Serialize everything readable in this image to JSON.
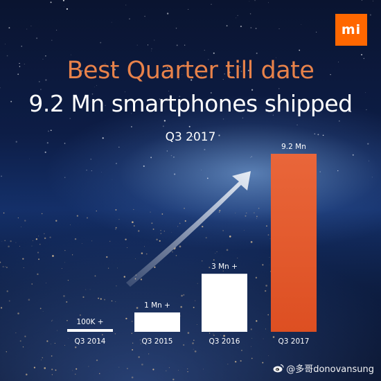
{
  "poster": {
    "logo_text": "mi",
    "title": "Best Quarter till date",
    "subtitle": "9.2 Mn smartphones shipped",
    "period": "Q3 2017",
    "watermark": "@多哥donovansung"
  },
  "colors": {
    "title": "#e8824a",
    "bar_default": "#ffffff",
    "bar_highlight": "#e45a2a",
    "logo_bg": "#ff6700"
  },
  "chart_data": {
    "type": "bar",
    "title": "",
    "xlabel": "",
    "ylabel": "",
    "categories": [
      "Q3 2014",
      "Q3 2015",
      "Q3 2016",
      "Q3 2017"
    ],
    "values": [
      0.1,
      1,
      3,
      9.2
    ],
    "unit": "Mn smartphones",
    "data_labels": [
      "100K +",
      "1 Mn +",
      "3 Mn +",
      "9.2 Mn"
    ],
    "highlight_index": 3,
    "ylim": [
      0,
      9.2
    ],
    "grid": false,
    "legend": "none",
    "annotation": "upward trend arrow"
  }
}
